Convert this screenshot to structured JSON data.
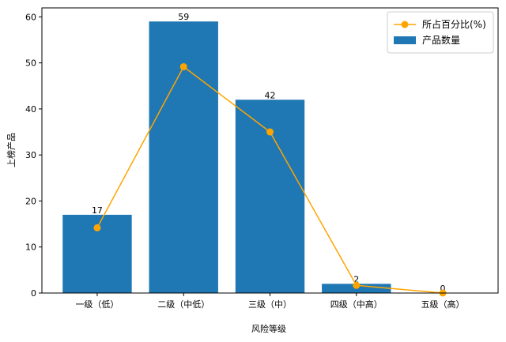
{
  "chart_data": {
    "type": "bar",
    "x_label": "风险等级",
    "y_label": "上榜产品",
    "categories": [
      "一级（低）",
      "二级（中低）",
      "三级（中）",
      "四级（中高）",
      "五级（高）"
    ],
    "series": [
      {
        "name": "所占百分比(%)",
        "type": "line",
        "color": "#ffa500",
        "values": [
          14.17,
          49.17,
          35,
          1.67,
          0
        ]
      },
      {
        "name": "产品数量",
        "type": "bar",
        "color": "#1f77b4",
        "values": [
          17,
          59,
          42,
          2,
          0
        ],
        "show_values": true
      }
    ],
    "ylim": [
      0,
      61.95
    ],
    "yticks": [
      0,
      10,
      20,
      30,
      40,
      50,
      60
    ],
    "legend": "upper right",
    "grid": false
  }
}
